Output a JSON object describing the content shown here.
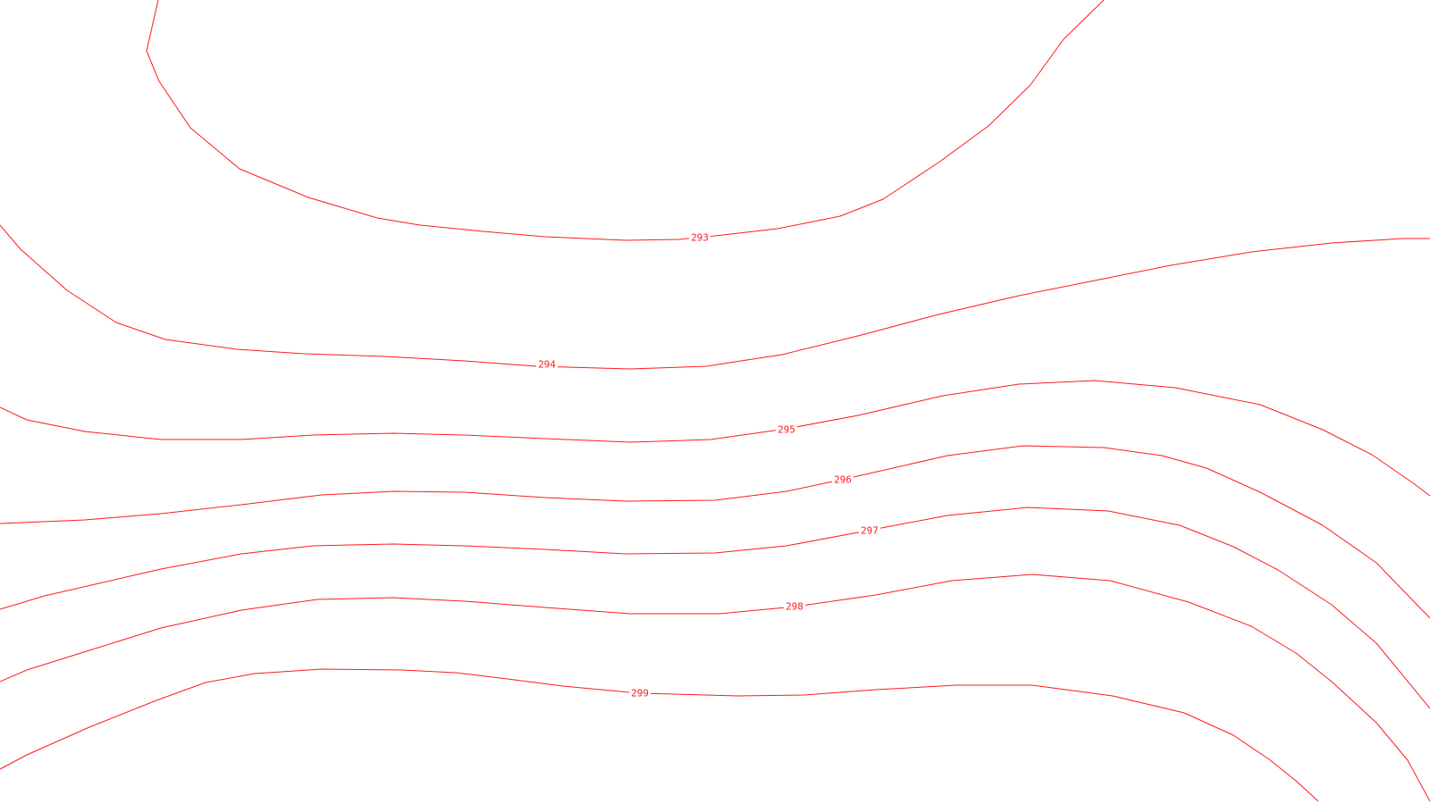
{
  "style": {
    "line_color": "#ff1a1a",
    "background": "#ffffff"
  },
  "contours": [
    {
      "id": "c293",
      "label": "293"
    },
    {
      "id": "c294",
      "label": "294"
    },
    {
      "id": "c295",
      "label": "295"
    },
    {
      "id": "c296",
      "label": "296"
    },
    {
      "id": "c297",
      "label": "297"
    },
    {
      "id": "c298",
      "label": "298"
    },
    {
      "id": "c299",
      "label": "299"
    }
  ]
}
